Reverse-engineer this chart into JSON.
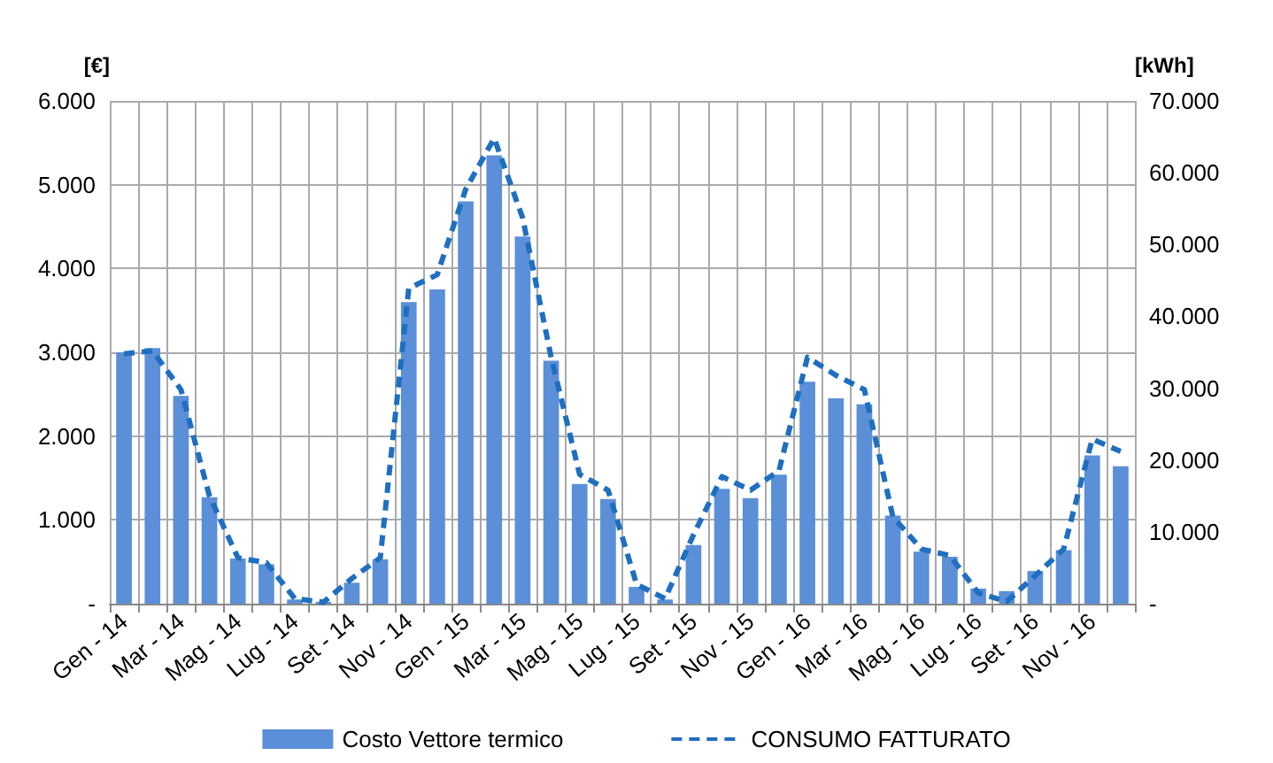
{
  "chart_data": {
    "type": "bar",
    "ylabel": "[€]",
    "y2label": "[kWh]",
    "categories": [
      "Gen - 14",
      null,
      "Mar - 14",
      null,
      "Mag - 14",
      null,
      "Lug - 14",
      null,
      "Set - 14",
      null,
      "Nov - 14",
      null,
      "Gen - 15",
      null,
      "Mar - 15",
      null,
      "Mag - 15",
      null,
      "Lug - 15",
      null,
      "Set - 15",
      null,
      "Nov - 15",
      null,
      "Gen - 16",
      null,
      "Mar - 16",
      null,
      "Mag - 16",
      null,
      "Lug - 16",
      null,
      "Set - 16",
      null,
      "Nov - 16",
      null
    ],
    "series": [
      {
        "name": "Costo Vettore termico",
        "color": "#5b8fd8",
        "values": [
          3000,
          3050,
          2480,
          1270,
          540,
          470,
          50,
          20,
          250,
          530,
          3600,
          3750,
          4800,
          5350,
          4380,
          2900,
          1430,
          1250,
          200,
          50,
          700,
          1370,
          1260,
          1540,
          2650,
          2450,
          2380,
          1050,
          620,
          560,
          180,
          150,
          390,
          640,
          1770,
          1640
        ]
      },
      {
        "name": "CONSUMO FATTURATO",
        "type": "line",
        "axis": "y2",
        "color": "#1f6fc0",
        "line_style": "dashed",
        "marker": "none",
        "values": [
          34800,
          35200,
          29800,
          15000,
          6400,
          5700,
          700,
          200,
          3500,
          6400,
          43900,
          45800,
          57700,
          64800,
          53700,
          34300,
          18000,
          15800,
          2700,
          700,
          9600,
          17700,
          15800,
          18500,
          34300,
          31800,
          29800,
          12100,
          7600,
          6700,
          1500,
          300,
          3900,
          7600,
          22900,
          21200
        ]
      }
    ],
    "ylim": [
      0,
      6000
    ],
    "yticks": [
      {
        "value": 0,
        "label": "-"
      },
      {
        "value": 1000,
        "label": "1.000"
      },
      {
        "value": 2000,
        "label": "2.000"
      },
      {
        "value": 3000,
        "label": "3.000"
      },
      {
        "value": 4000,
        "label": "4.000"
      },
      {
        "value": 5000,
        "label": "5.000"
      },
      {
        "value": 6000,
        "label": "6.000"
      }
    ],
    "y2lim": [
      0,
      70000
    ],
    "y2ticks": [
      {
        "value": 0,
        "label": "-"
      },
      {
        "value": 10000,
        "label": "10.000"
      },
      {
        "value": 20000,
        "label": "20.000"
      },
      {
        "value": 30000,
        "label": "30.000"
      },
      {
        "value": 40000,
        "label": "40.000"
      },
      {
        "value": 50000,
        "label": "50.000"
      },
      {
        "value": 60000,
        "label": "60.000"
      },
      {
        "value": 70000,
        "label": "70.000"
      }
    ],
    "grid": true,
    "legend": "bottom"
  }
}
